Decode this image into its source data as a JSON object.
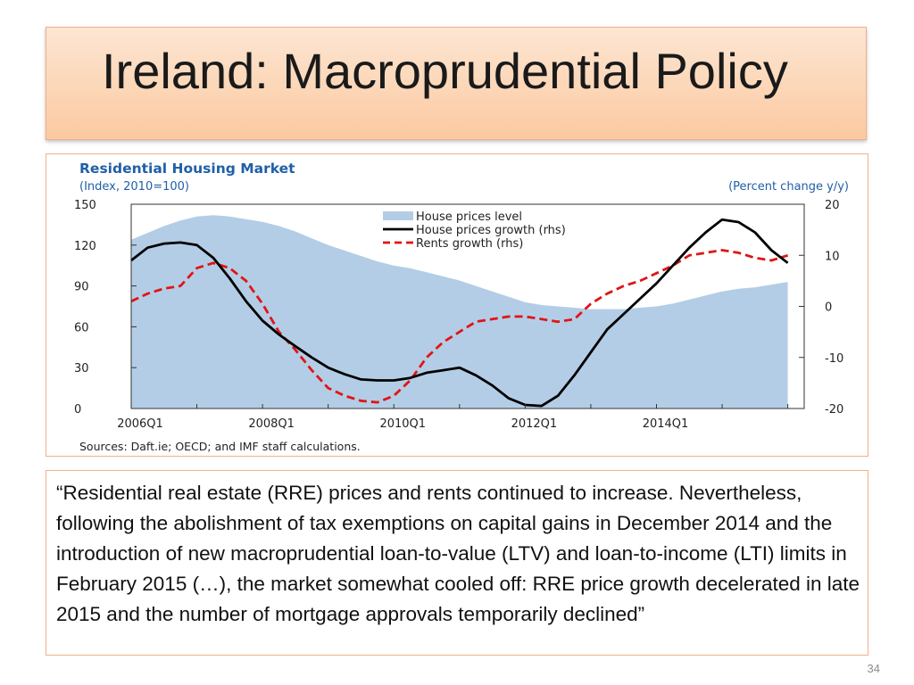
{
  "slide": {
    "title": "Ireland: Macroprudential Policy",
    "page_number": "34",
    "quote": "“Residential real estate (RRE) prices and rents continued to increase. Nevertheless, following the abolishment of tax exemptions on capital gains in December 2014 and the introduction of new macroprudential loan-to-value (LTV) and loan-to-income (LTI) limits in February 2015 (…), the market somewhat cooled off: RRE price growth decelerated in late 2015 and the number of mortgage approvals temporarily declined”"
  },
  "colors": {
    "title_gradient_top": "#fde6d3",
    "title_gradient_bottom": "#fbc9a0",
    "frame_border": "#f0b088",
    "chart_title": "#1f5fa8",
    "area_fill": "#b4cde6",
    "black_line": "#000000",
    "red_dashed": "#e01515"
  },
  "chart_data": {
    "type": "line",
    "title": "Residential Housing Market",
    "left_axis_label": "(Index, 2010=100)",
    "right_axis_label": "(Percent change y/y)",
    "source": "Sources: Daft.ie; OECD; and IMF staff calculations.",
    "x_tick_labels": [
      "2006Q1",
      "2008Q1",
      "2010Q1",
      "2012Q1",
      "2014Q1"
    ],
    "x_tick_positions": [
      2006.0,
      2008.0,
      2010.0,
      2012.0,
      2014.0
    ],
    "x_range": [
      2006.0,
      2016.25
    ],
    "y_left": {
      "min": 0,
      "max": 150,
      "ticks": [
        "0",
        "30",
        "60",
        "90",
        "120",
        "150"
      ]
    },
    "y_right": {
      "min": -20,
      "max": 20,
      "ticks": [
        "-20",
        "-10",
        "0",
        "10",
        "20"
      ]
    },
    "legend": [
      {
        "label": "House prices level",
        "style": "area"
      },
      {
        "label": "House prices growth (rhs)",
        "style": "solid"
      },
      {
        "label": "Rents growth (rhs)",
        "style": "dashed"
      }
    ],
    "x": [
      2006.0,
      2006.25,
      2006.5,
      2006.75,
      2007.0,
      2007.25,
      2007.5,
      2007.75,
      2008.0,
      2008.25,
      2008.5,
      2008.75,
      2009.0,
      2009.25,
      2009.5,
      2009.75,
      2010.0,
      2010.25,
      2010.5,
      2010.75,
      2011.0,
      2011.25,
      2011.5,
      2011.75,
      2012.0,
      2012.25,
      2012.5,
      2012.75,
      2013.0,
      2013.25,
      2013.5,
      2013.75,
      2014.0,
      2014.25,
      2014.5,
      2014.75,
      2015.0,
      2015.25,
      2015.5,
      2015.75,
      2016.0
    ],
    "series": [
      {
        "name": "House prices level",
        "axis": "left",
        "values": [
          124,
          129,
          134,
          138,
          141,
          142,
          141,
          139,
          137,
          134,
          130,
          125,
          120,
          116,
          112,
          108,
          105,
          103,
          100,
          97,
          94,
          90,
          86,
          82,
          78,
          76,
          75,
          74,
          73,
          73,
          73,
          74,
          75,
          77,
          80,
          83,
          86,
          88,
          89,
          91,
          93
        ]
      },
      {
        "name": "House prices growth (rhs)",
        "axis": "right",
        "values": [
          9.0,
          11.5,
          12.3,
          12.5,
          12.0,
          9.5,
          5.5,
          1.0,
          -2.8,
          -5.5,
          -7.8,
          -10.0,
          -12.0,
          -13.3,
          -14.3,
          -14.5,
          -14.5,
          -14.0,
          -13.0,
          -12.5,
          -12.0,
          -13.5,
          -15.5,
          -18.0,
          -19.3,
          -19.5,
          -17.5,
          -13.5,
          -9.0,
          -4.5,
          -1.5,
          1.5,
          4.5,
          8.0,
          11.5,
          14.5,
          17.0,
          16.5,
          14.5,
          11.0,
          8.5
        ]
      },
      {
        "name": "Rents growth (rhs)",
        "axis": "right",
        "values": [
          1.0,
          2.5,
          3.5,
          4.0,
          7.5,
          8.5,
          7.5,
          5.0,
          0.5,
          -5.0,
          -8.5,
          -12.5,
          -16.0,
          -17.5,
          -18.5,
          -18.8,
          -17.5,
          -14.5,
          -10.0,
          -7.0,
          -5.0,
          -3.0,
          -2.5,
          -2.0,
          -2.0,
          -2.5,
          -3.0,
          -2.5,
          0.5,
          2.5,
          4.0,
          5.0,
          6.5,
          8.0,
          10.0,
          10.5,
          11.0,
          10.5,
          9.5,
          9.0,
          10.0
        ]
      }
    ]
  }
}
